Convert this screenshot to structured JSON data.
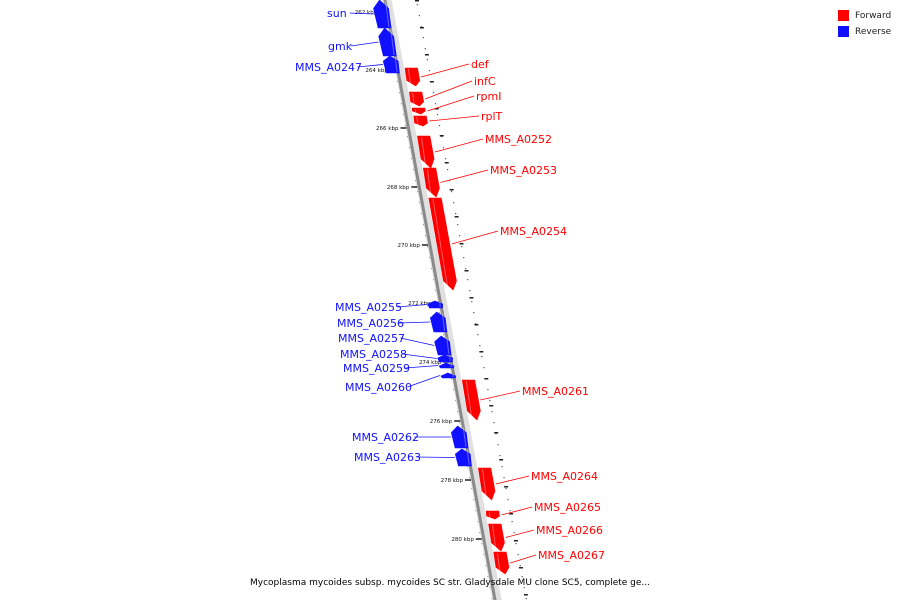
{
  "legend": {
    "forward_label": "Forward",
    "reverse_label": "Reverse",
    "forward_color": "#ff0000",
    "reverse_color": "#1010ff"
  },
  "caption": "Mycoplasma mycoides subsp. mycoides SC str. Gladysdale MU clone SC5, complete ge...",
  "ticks": [
    "262 kbp",
    "264 kbp",
    "266 kbp",
    "268 kbp",
    "270 kbp",
    "272 kbp",
    "274 kbp",
    "276 kbp",
    "278 kbp",
    "280 kbp"
  ],
  "genes": [
    {
      "name": "sun",
      "strand": "reverse"
    },
    {
      "name": "gmk",
      "strand": "reverse"
    },
    {
      "name": "MMS_A0247",
      "strand": "reverse"
    },
    {
      "name": "def",
      "strand": "forward"
    },
    {
      "name": "infC",
      "strand": "forward"
    },
    {
      "name": "rpmI",
      "strand": "forward"
    },
    {
      "name": "rplT",
      "strand": "forward"
    },
    {
      "name": "MMS_A0252",
      "strand": "forward"
    },
    {
      "name": "MMS_A0253",
      "strand": "forward"
    },
    {
      "name": "MMS_A0254",
      "strand": "forward"
    },
    {
      "name": "MMS_A0255",
      "strand": "reverse"
    },
    {
      "name": "MMS_A0256",
      "strand": "reverse"
    },
    {
      "name": "MMS_A0257",
      "strand": "reverse"
    },
    {
      "name": "MMS_A0258",
      "strand": "reverse"
    },
    {
      "name": "MMS_A0259",
      "strand": "reverse"
    },
    {
      "name": "MMS_A0260",
      "strand": "reverse"
    },
    {
      "name": "MMS_A0261",
      "strand": "forward"
    },
    {
      "name": "MMS_A0262",
      "strand": "reverse"
    },
    {
      "name": "MMS_A0263",
      "strand": "reverse"
    },
    {
      "name": "MMS_A0264",
      "strand": "forward"
    },
    {
      "name": "MMS_A0265",
      "strand": "forward"
    },
    {
      "name": "MMS_A0266",
      "strand": "forward"
    },
    {
      "name": "MMS_A0267",
      "strand": "forward"
    }
  ]
}
